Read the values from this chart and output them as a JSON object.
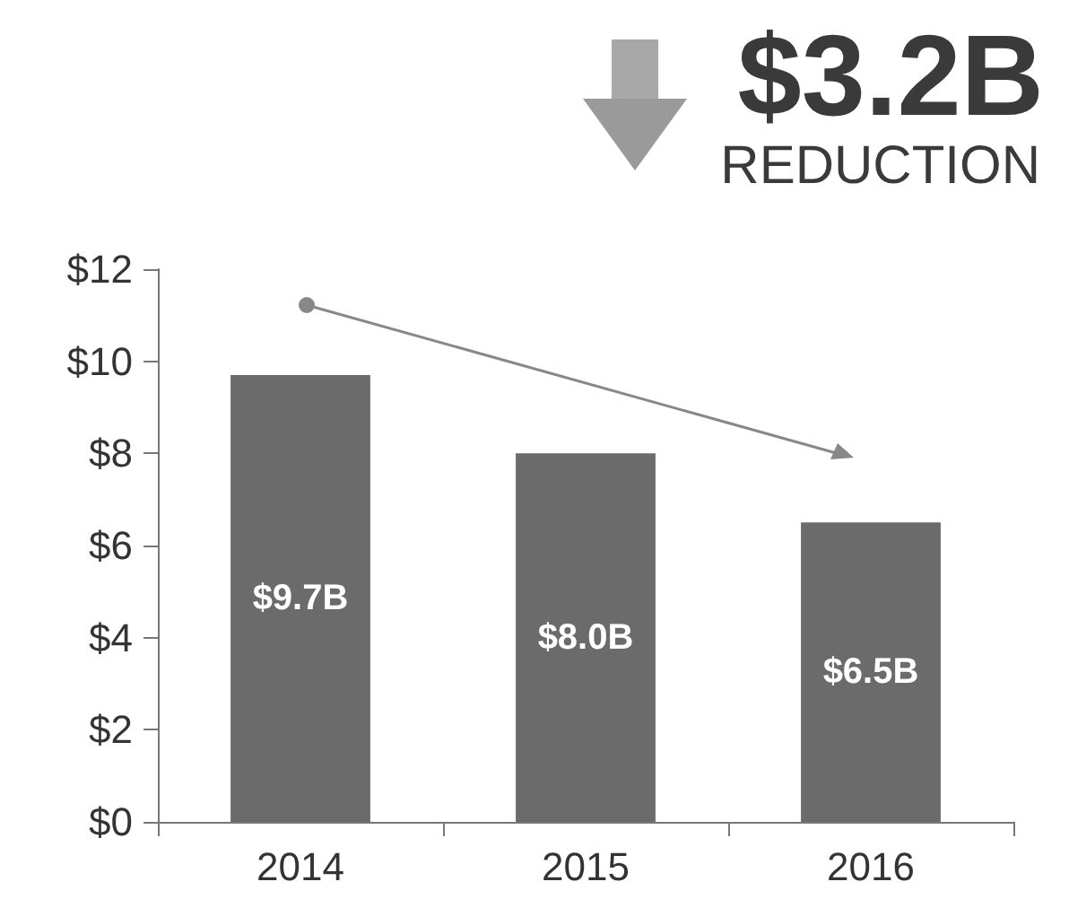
{
  "chart_data": {
    "type": "bar",
    "title": "$3.2B",
    "subtitle": "REDUCTION",
    "categories": [
      "2014",
      "2015",
      "2016"
    ],
    "values": [
      9.7,
      8.0,
      6.5
    ],
    "color": "#6b6b6b",
    "value_labels": [
      "$9.7B",
      "$8.0B",
      "$6.5B"
    ],
    "ylim": [
      0,
      12
    ],
    "yticks": [
      {
        "value": 0,
        "label": "$0"
      },
      {
        "value": 2,
        "label": "$2"
      },
      {
        "value": 4,
        "label": "$4"
      },
      {
        "value": 6,
        "label": "$6"
      },
      {
        "value": 8,
        "label": "$8"
      },
      {
        "value": 10,
        "label": "$10"
      },
      {
        "value": 12,
        "label": "$12"
      }
    ],
    "grid": false
  }
}
